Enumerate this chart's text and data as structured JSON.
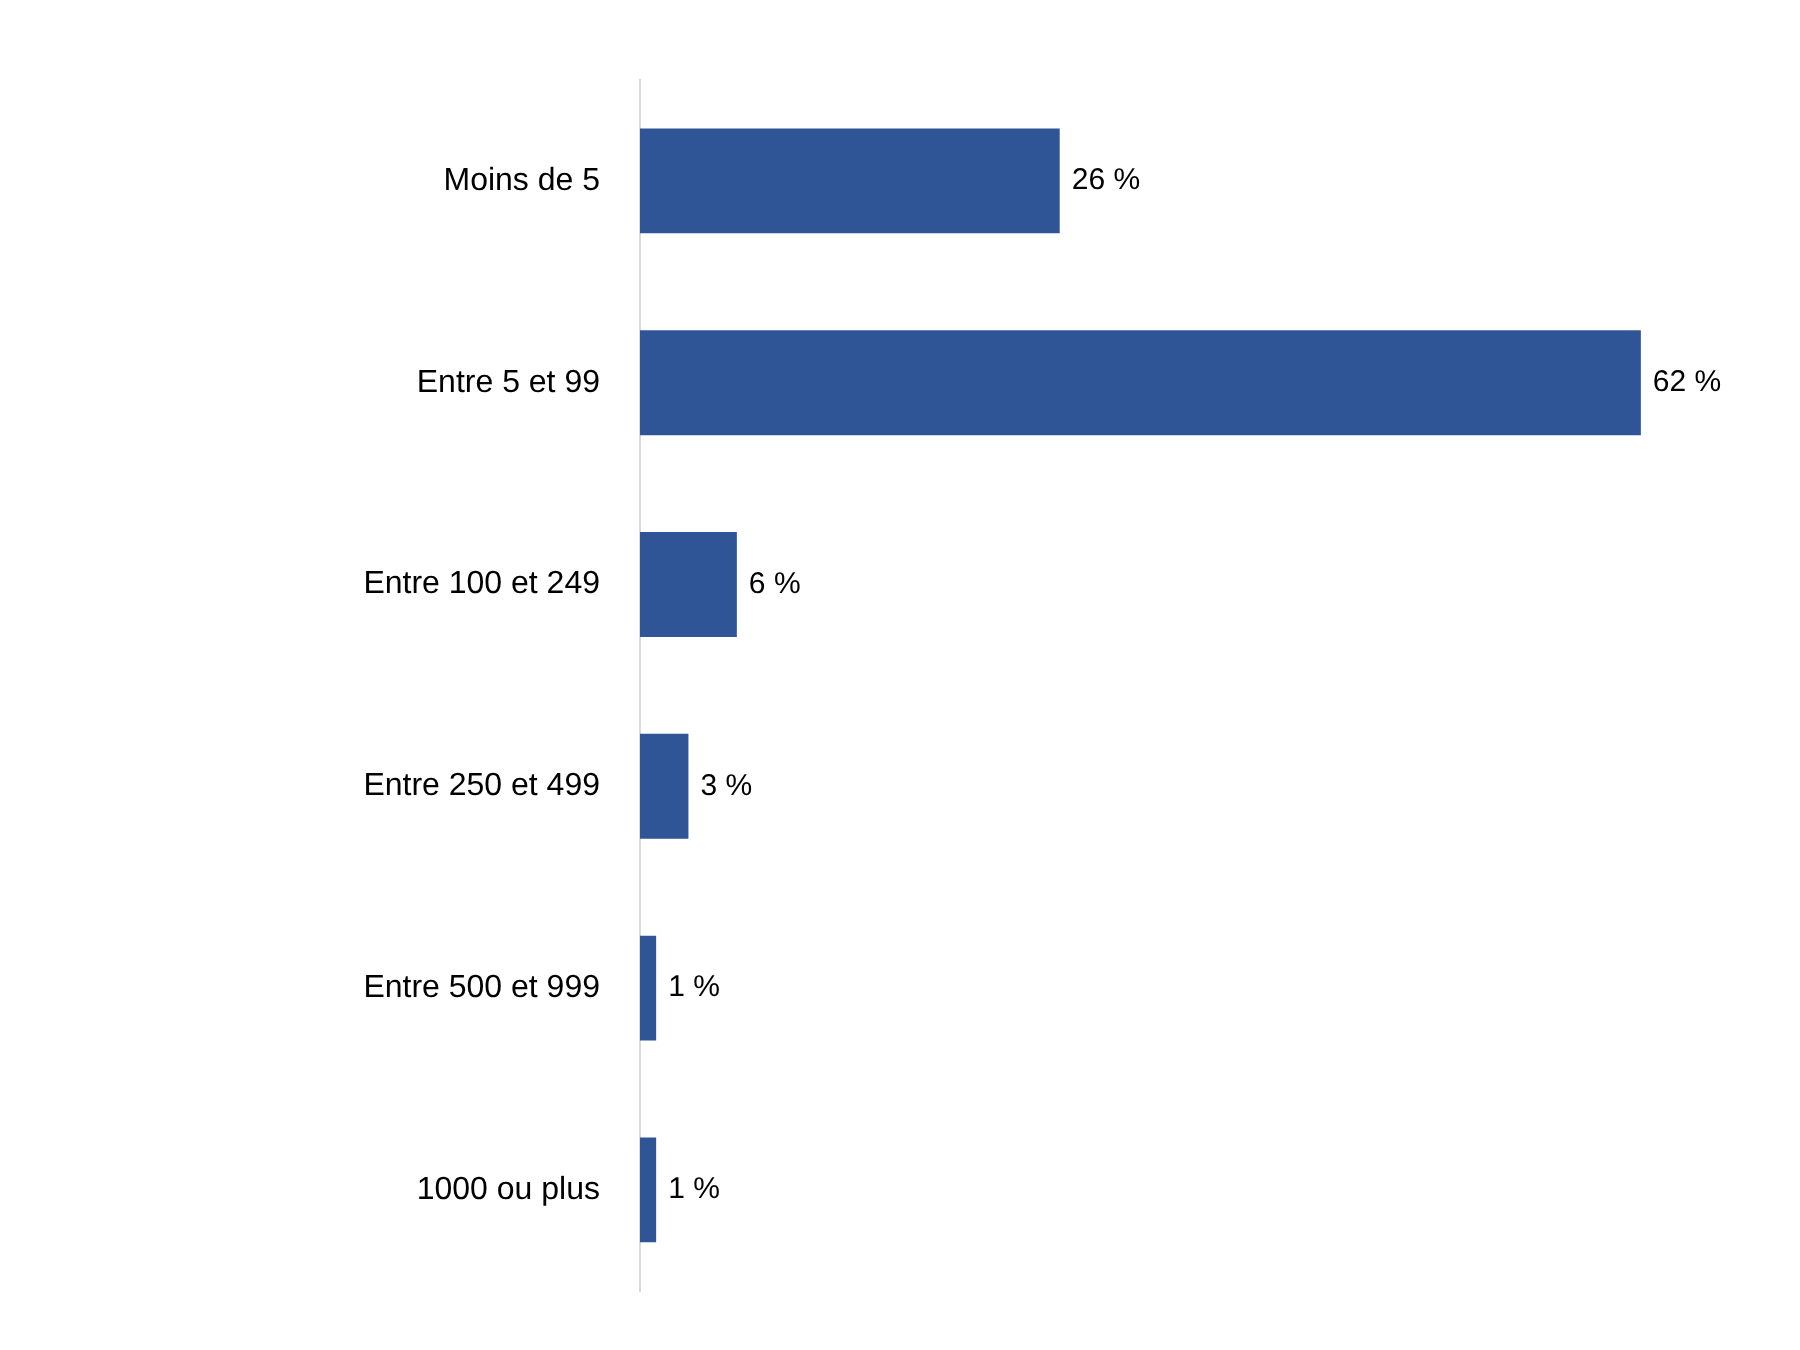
{
  "chart_data": {
    "type": "bar",
    "orientation": "horizontal",
    "categories": [
      "Moins de 5",
      "Entre 5 et 99",
      "Entre 100 et 249",
      "Entre 250 et 499",
      "Entre 500 et 999",
      "1000 ou plus"
    ],
    "values": [
      26,
      62,
      6,
      3,
      1,
      1
    ],
    "value_labels": [
      "26 %",
      "62 %",
      "6 %",
      "3 %",
      "1 %",
      "1 %"
    ],
    "color": "#2f5597",
    "tick_labels": "y"
  }
}
